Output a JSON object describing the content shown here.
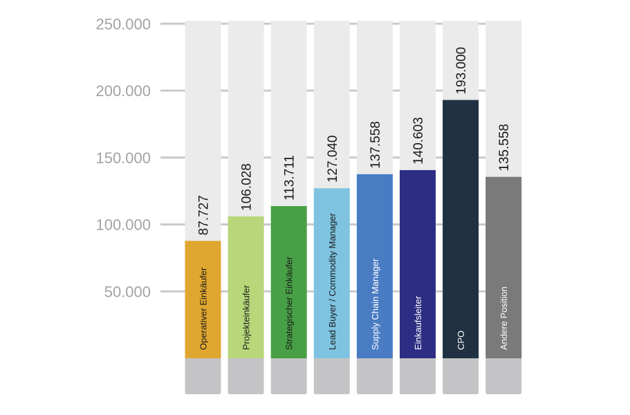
{
  "chart_data": {
    "type": "bar",
    "categories": [
      "Operativer Einkäufer",
      "Projekteinkäufer",
      "Strategischer Einkäufer",
      "Lead Buyer / Commodity Manager",
      "Supply Chain Manager",
      "Einkaufsleiter",
      "CPO",
      "Andere Position"
    ],
    "values": [
      87727,
      106028,
      113711,
      127040,
      137558,
      140603,
      193000,
      135558
    ],
    "value_labels": [
      "87.727",
      "106.028",
      "113.711",
      "127.040",
      "137.558",
      "140.603",
      "193.000",
      "135.558"
    ],
    "yticks": [
      50000,
      100000,
      150000,
      200000,
      250000
    ],
    "ytick_labels": [
      "50.000",
      "100.000",
      "150.000",
      "200.000",
      "250.000"
    ],
    "ylim": [
      0,
      250000
    ],
    "grid": true,
    "colors": [
      "#e0a730",
      "#b7d77a",
      "#48a046",
      "#7ec4e0",
      "#4a7cc4",
      "#2d2e83",
      "#1f3142",
      "#7a7a7a"
    ],
    "track_color": "#ebebeb",
    "base_color": "#c4c4c6",
    "grid_color": "#c9c9c9",
    "tick_color": "#a3a3a3",
    "value_label_color": "#1a1a1a",
    "inner_label_colors": [
      "#1a1a1a",
      "#1a1a1a",
      "#1a1a1a",
      "#1a1a1a",
      "#ffffff",
      "#ffffff",
      "#ffffff",
      "#ffffff"
    ]
  }
}
